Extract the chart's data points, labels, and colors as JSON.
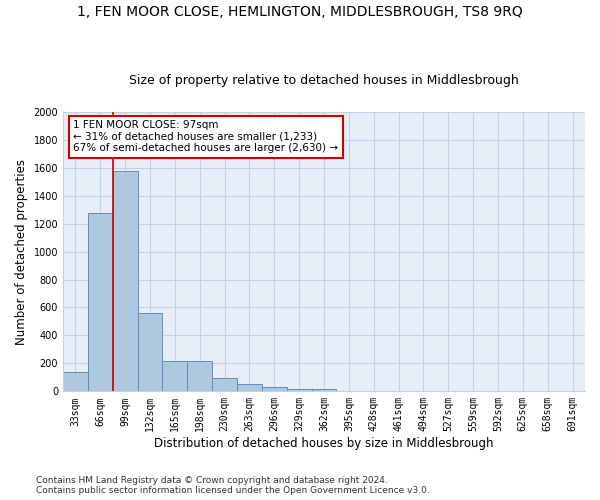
{
  "title": "1, FEN MOOR CLOSE, HEMLINGTON, MIDDLESBROUGH, TS8 9RQ",
  "subtitle": "Size of property relative to detached houses in Middlesbrough",
  "xlabel": "Distribution of detached houses by size in Middlesbrough",
  "ylabel": "Number of detached properties",
  "footer_line1": "Contains HM Land Registry data © Crown copyright and database right 2024.",
  "footer_line2": "Contains public sector information licensed under the Open Government Licence v3.0.",
  "categories": [
    "33sqm",
    "66sqm",
    "99sqm",
    "132sqm",
    "165sqm",
    "198sqm",
    "230sqm",
    "263sqm",
    "296sqm",
    "329sqm",
    "362sqm",
    "395sqm",
    "428sqm",
    "461sqm",
    "494sqm",
    "527sqm",
    "559sqm",
    "592sqm",
    "625sqm",
    "658sqm",
    "691sqm"
  ],
  "values": [
    140,
    1275,
    1575,
    560,
    220,
    220,
    95,
    50,
    28,
    18,
    18,
    0,
    0,
    0,
    0,
    0,
    0,
    0,
    0,
    0,
    0
  ],
  "bar_color": "#aec8e0",
  "bar_edge_color": "#5a8fc0",
  "marker_line_color": "#cc0000",
  "annotation_line1": "1 FEN MOOR CLOSE: 97sqm",
  "annotation_line2": "← 31% of detached houses are smaller (1,233)",
  "annotation_line3": "67% of semi-detached houses are larger (2,630) →",
  "annotation_box_edge_color": "#cc0000",
  "ylim": [
    0,
    2000
  ],
  "yticks": [
    0,
    200,
    400,
    600,
    800,
    1000,
    1200,
    1400,
    1600,
    1800,
    2000
  ],
  "grid_color": "#c8cfe0",
  "bg_color": "#e8eef8",
  "title_fontsize": 10,
  "subtitle_fontsize": 9,
  "axis_label_fontsize": 8.5,
  "tick_fontsize": 7,
  "footer_fontsize": 6.5
}
